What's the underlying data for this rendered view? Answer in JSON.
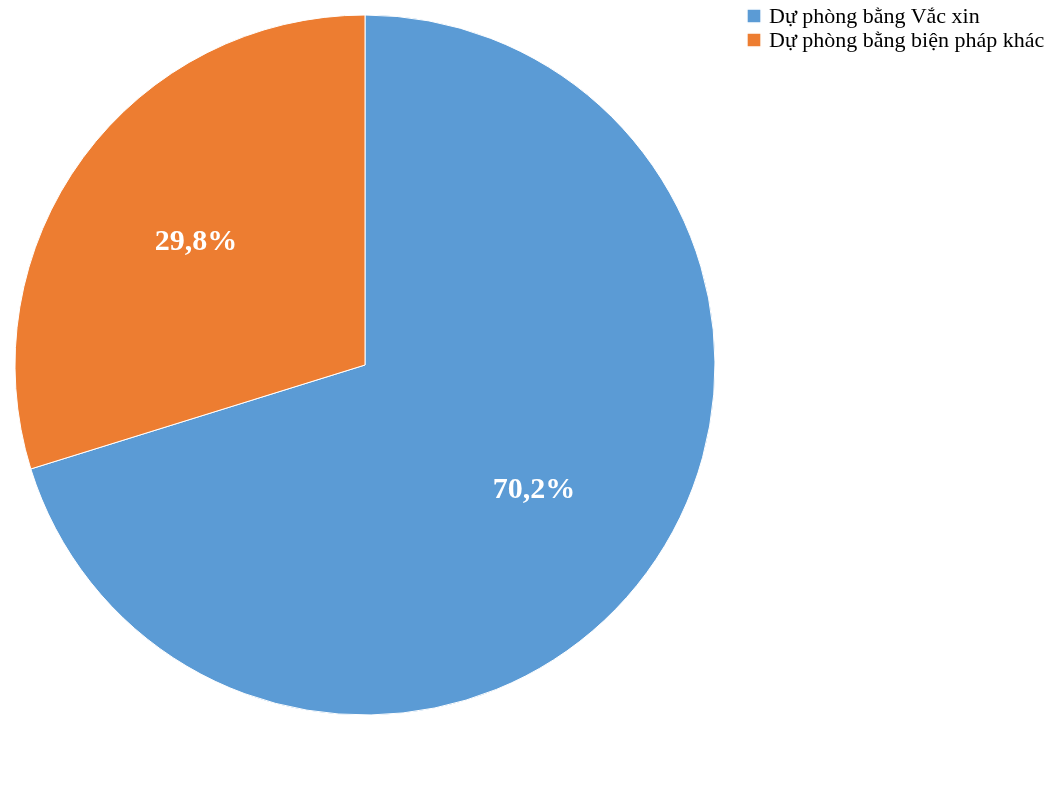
{
  "chart_data": {
    "type": "pie",
    "categories": [
      "Dự phòng bằng Vắc xin",
      "Dự phòng bằng biện pháp khác"
    ],
    "values": [
      70.2,
      29.8
    ],
    "colors": [
      "#5b9bd5",
      "#ed7d31"
    ],
    "value_labels": [
      "70,2%",
      "29,8%"
    ],
    "legend": "right"
  }
}
